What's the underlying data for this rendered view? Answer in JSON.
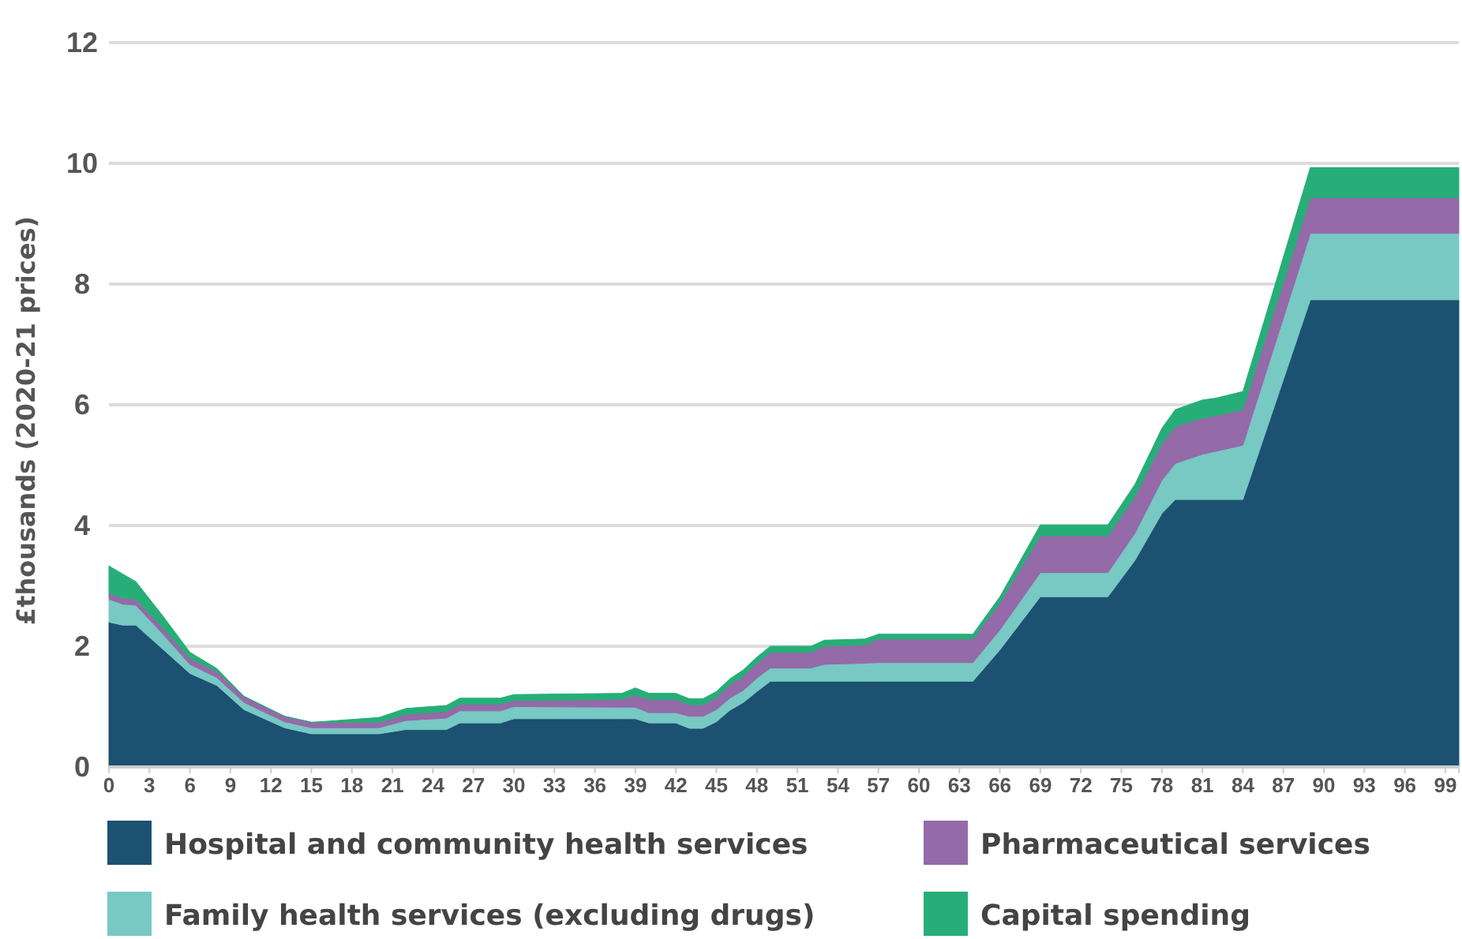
{
  "chart_data": {
    "type": "area",
    "stacked": true,
    "ylabel": "£thousands (2020-21 prices)",
    "x": [
      0,
      1,
      2,
      4,
      6,
      8,
      10,
      13,
      15,
      20,
      22,
      25,
      26,
      29,
      30,
      38,
      39,
      40,
      42,
      43,
      44,
      45,
      46,
      47,
      48,
      49,
      52,
      53,
      56,
      57,
      64,
      66,
      69,
      74,
      76,
      78,
      79,
      81,
      82,
      84,
      89,
      100
    ],
    "xlim": [
      0,
      100
    ],
    "xticks": [
      0,
      3,
      6,
      9,
      12,
      15,
      18,
      21,
      24,
      27,
      30,
      33,
      36,
      39,
      42,
      45,
      48,
      51,
      54,
      57,
      60,
      63,
      66,
      69,
      72,
      75,
      78,
      81,
      84,
      87,
      90,
      93,
      96,
      99
    ],
    "ylim": [
      0,
      12
    ],
    "yticks": [
      0,
      2,
      4,
      6,
      8,
      10,
      12
    ],
    "grid": "y",
    "legend": "bottom",
    "series": [
      {
        "name": "Hospital and community health services",
        "color": "#1c5171",
        "values": [
          2.4,
          2.35,
          2.35,
          1.95,
          1.55,
          1.35,
          0.95,
          0.65,
          0.55,
          0.55,
          0.62,
          0.62,
          0.73,
          0.73,
          0.8,
          0.8,
          0.8,
          0.73,
          0.73,
          0.64,
          0.64,
          0.75,
          0.94,
          1.07,
          1.25,
          1.42,
          1.42,
          1.42,
          1.42,
          1.42,
          1.42,
          1.94,
          2.82,
          2.82,
          3.42,
          4.2,
          4.43,
          4.43,
          4.43,
          4.43,
          7.74,
          7.74
        ]
      },
      {
        "name": "Family health services (excluding drugs)",
        "color": "#78c8c4",
        "values": [
          0.38,
          0.35,
          0.33,
          0.25,
          0.15,
          0.13,
          0.12,
          0.1,
          0.1,
          0.1,
          0.15,
          0.19,
          0.2,
          0.2,
          0.2,
          0.19,
          0.19,
          0.17,
          0.17,
          0.2,
          0.2,
          0.2,
          0.2,
          0.2,
          0.22,
          0.22,
          0.22,
          0.28,
          0.3,
          0.31,
          0.31,
          0.33,
          0.4,
          0.4,
          0.45,
          0.55,
          0.6,
          0.75,
          0.8,
          0.9,
          1.1,
          1.1
        ]
      },
      {
        "name": "Pharmaceutical services",
        "color": "#946aa8",
        "values": [
          0.1,
          0.1,
          0.1,
          0.1,
          0.1,
          0.1,
          0.1,
          0.09,
          0.09,
          0.09,
          0.1,
          0.11,
          0.11,
          0.11,
          0.1,
          0.13,
          0.2,
          0.22,
          0.22,
          0.19,
          0.19,
          0.2,
          0.22,
          0.24,
          0.25,
          0.26,
          0.26,
          0.3,
          0.3,
          0.39,
          0.39,
          0.45,
          0.61,
          0.61,
          0.61,
          0.61,
          0.61,
          0.6,
          0.59,
          0.59,
          0.59,
          0.59
        ]
      },
      {
        "name": "Capital spending",
        "color": "#27ae78",
        "values": [
          0.45,
          0.4,
          0.29,
          0.2,
          0.1,
          0.05,
          0,
          0,
          0,
          0.08,
          0.1,
          0.1,
          0.1,
          0.1,
          0.1,
          0.1,
          0.12,
          0.1,
          0.1,
          0.1,
          0.1,
          0.1,
          0.1,
          0.1,
          0.1,
          0.1,
          0.1,
          0.1,
          0.1,
          0.08,
          0.08,
          0.1,
          0.18,
          0.18,
          0.2,
          0.25,
          0.28,
          0.3,
          0.29,
          0.3,
          0.5,
          0.5
        ]
      }
    ]
  }
}
